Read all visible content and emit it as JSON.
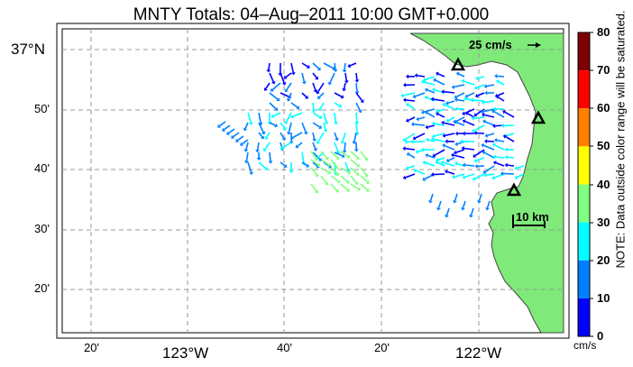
{
  "title": "MNTY Totals: 04–Aug–2011 10:00 GMT+0.000",
  "map": {
    "lat_labels": [
      "37°N",
      "50'",
      "40'",
      "30'",
      "20'"
    ],
    "lon_labels": [
      "20'",
      "123°W",
      "40'",
      "20'",
      "122°W"
    ],
    "land_color": "#7fea7a",
    "sites": [
      "site-north",
      "site-east",
      "site-south"
    ]
  },
  "legend": {
    "speed_label": "25 cm/s",
    "distance_label": "10 km"
  },
  "colorbar": {
    "ticks": [
      "80",
      "70",
      "60",
      "50",
      "40",
      "30",
      "20",
      "10",
      "0"
    ],
    "colors": [
      "#7f0000",
      "#ff0000",
      "#ff8000",
      "#ffff00",
      "#80ff80",
      "#00ffff",
      "#0080ff",
      "#0000ff"
    ],
    "units": "cm/s",
    "note": "NOTE: Data outside color range will be saturated."
  }
}
